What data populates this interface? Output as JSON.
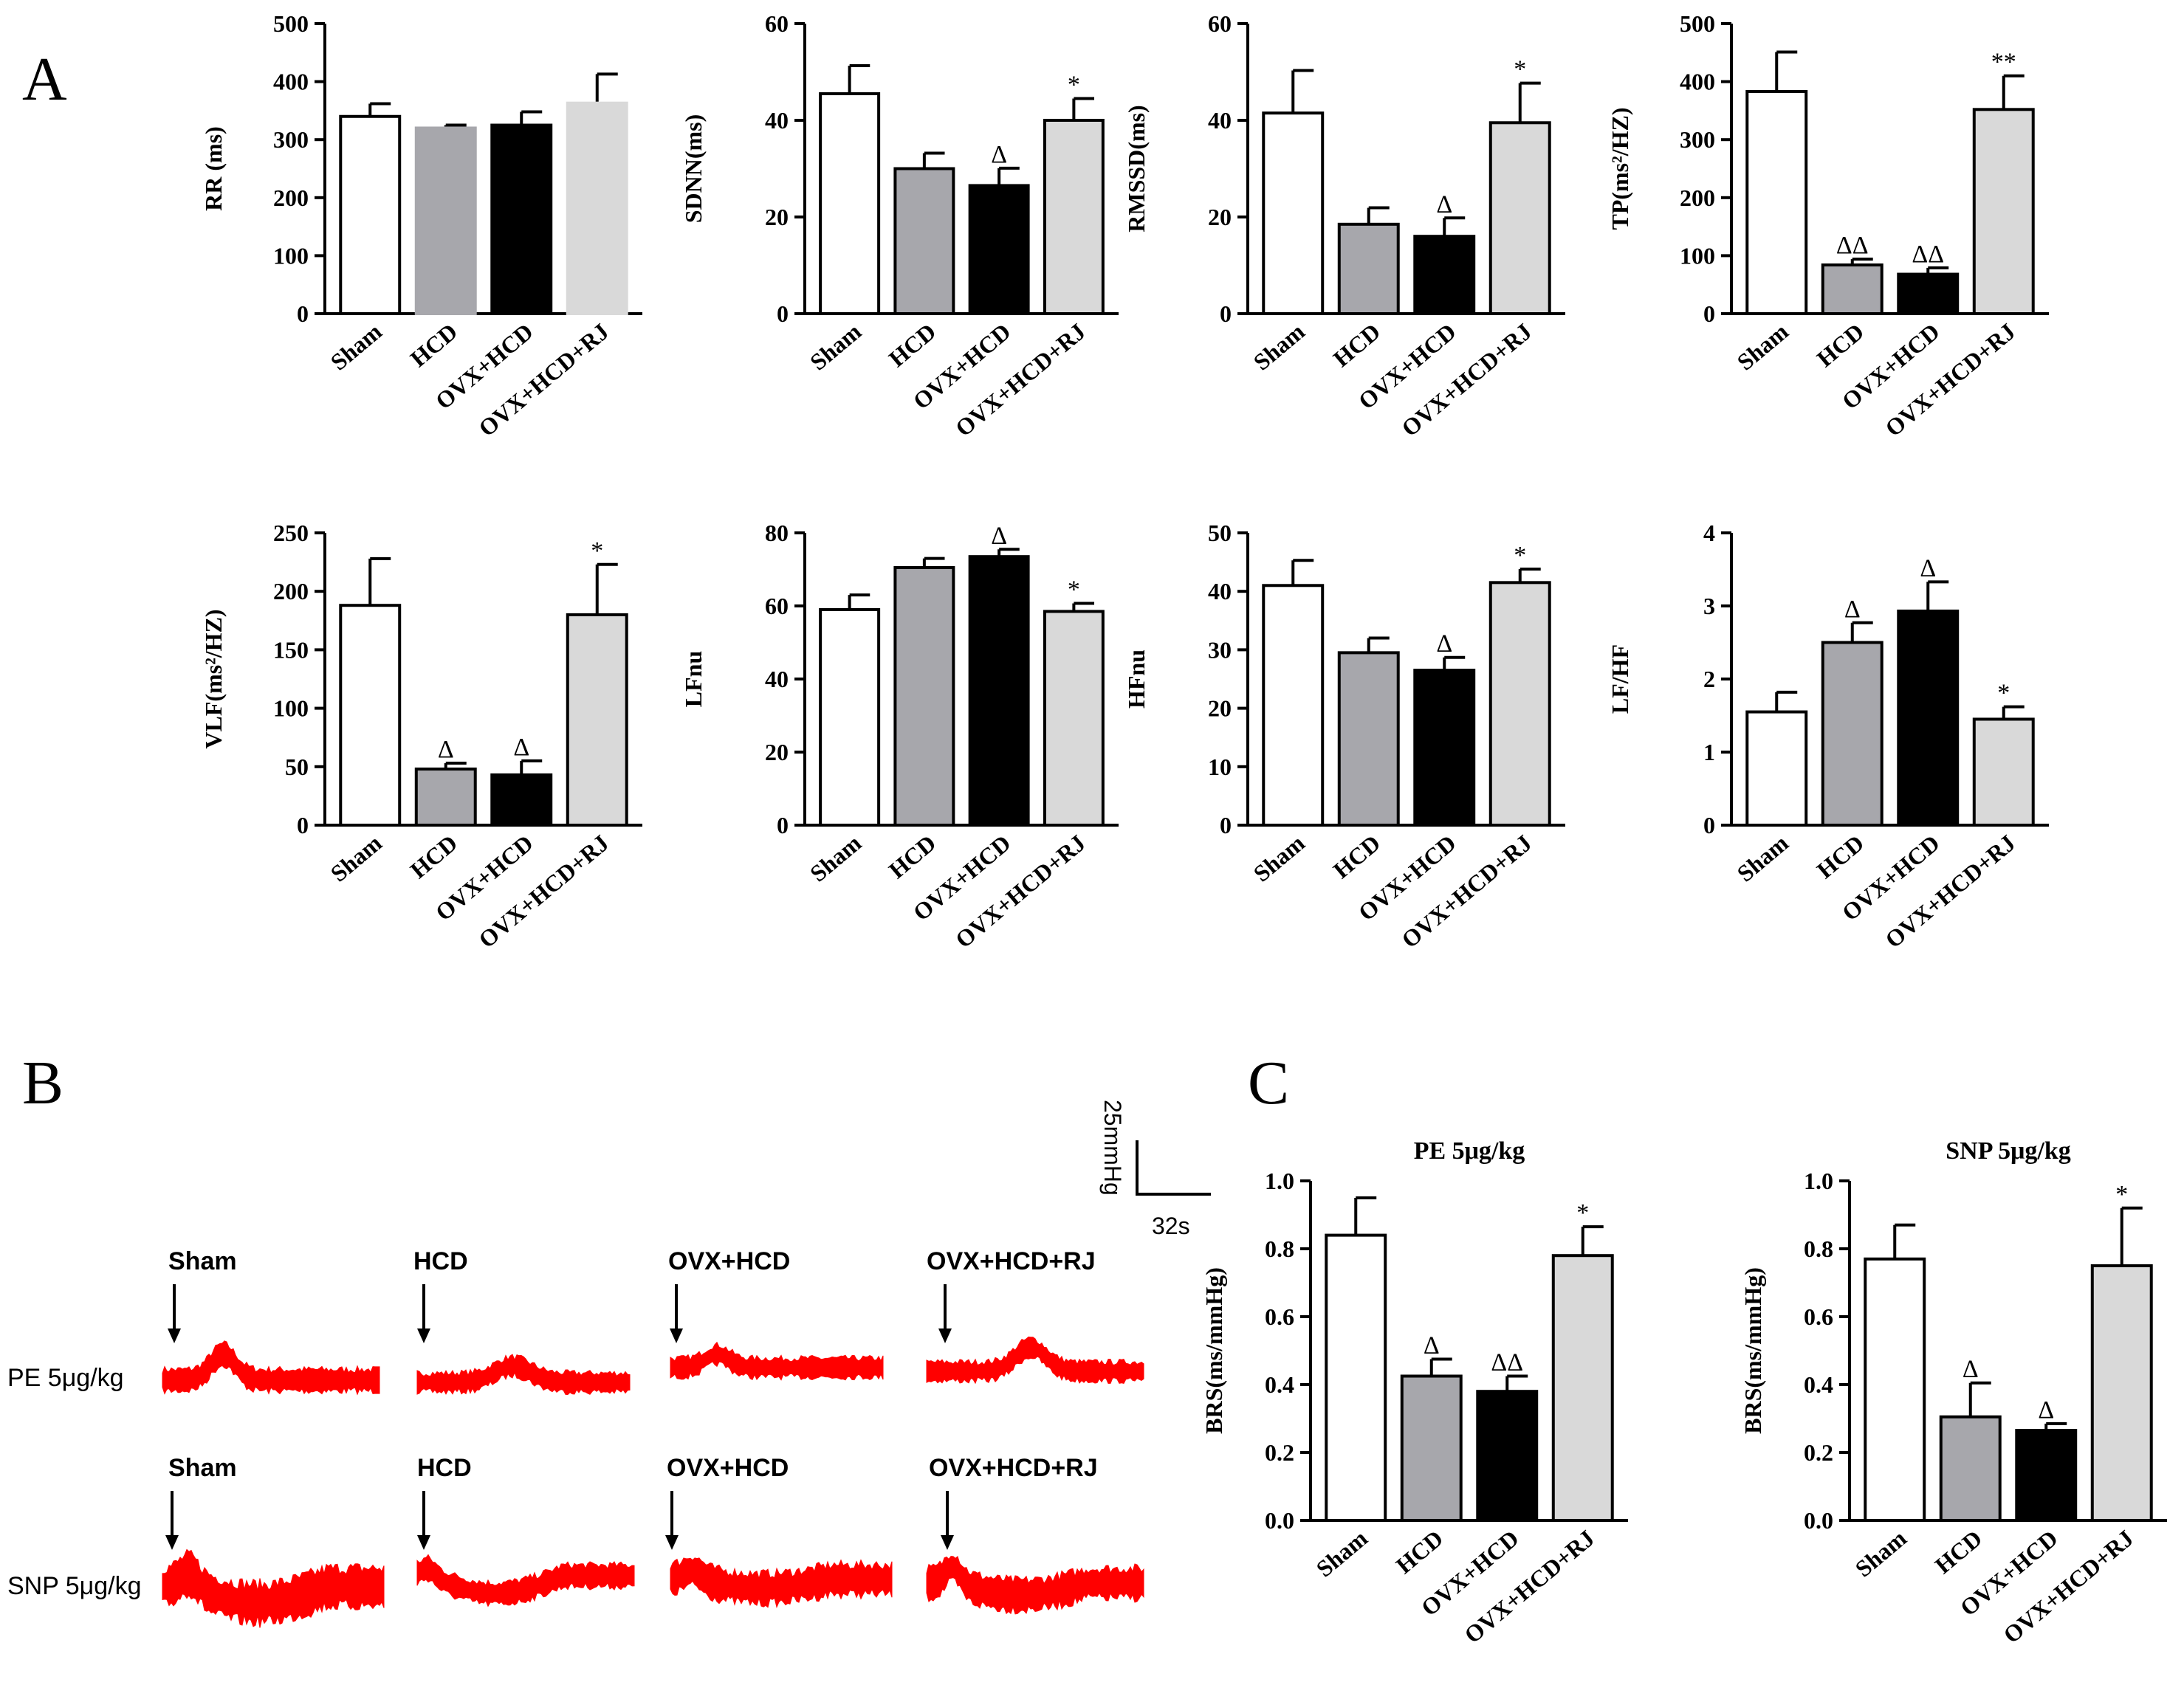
{
  "panel_labels": {
    "A": "A",
    "B": "B",
    "C": "C"
  },
  "groups": [
    "Sham",
    "HCD",
    "OVX+HCD",
    "OVX+HCD+RJ"
  ],
  "group_colors": [
    "#ffffff",
    "#a7a7ac",
    "#000000",
    "#d9d9d9"
  ],
  "trace_color": "#ff0000",
  "scale_bar": {
    "vertical_label": "25mmHg",
    "horizontal_label": "32s"
  },
  "traces": {
    "pe_label": "PE 5μg/kg",
    "snp_label": "SNP 5μg/kg"
  },
  "chart_data": [
    {
      "id": "rr",
      "type": "bar",
      "ylabel": "RR (ms)",
      "ylim": [
        0,
        500
      ],
      "ticks": [
        "0",
        "100",
        "200",
        "300",
        "400",
        "500"
      ],
      "tickvals": [
        0,
        100,
        200,
        300,
        400,
        500
      ],
      "categories": [
        "Sham",
        "HCD",
        "OVX+HCD",
        "OVX+HCD+RJ"
      ],
      "values": [
        340,
        320,
        325,
        363
      ],
      "errors": [
        22,
        5,
        23,
        50
      ],
      "annotations": [
        "",
        "",
        "",
        ""
      ],
      "colors": [
        "#ffffff",
        "#a7a7ac",
        "#000000",
        "#d9d9d9"
      ]
    },
    {
      "id": "sdnn",
      "type": "bar",
      "ylabel": "SDNN(ms)",
      "ylim": [
        0,
        60
      ],
      "ticks": [
        "0",
        "20",
        "40",
        "60"
      ],
      "tickvals": [
        0,
        20,
        40,
        60
      ],
      "categories": [
        "Sham",
        "HCD",
        "OVX+HCD",
        "OVX+HCD+RJ"
      ],
      "values": [
        45.5,
        30,
        26.5,
        40
      ],
      "errors": [
        5.8,
        3.2,
        3.6,
        4.5
      ],
      "annotations": [
        "",
        "",
        "Δ",
        "*"
      ]
    },
    {
      "id": "rmssd",
      "type": "bar",
      "ylabel": "RMSSD(ms)",
      "ylim": [
        0,
        60
      ],
      "ticks": [
        "0",
        "20",
        "40",
        "60"
      ],
      "tickvals": [
        0,
        20,
        40,
        60
      ],
      "categories": [
        "Sham",
        "HCD",
        "OVX+HCD",
        "OVX+HCD+RJ"
      ],
      "values": [
        41.5,
        18.5,
        16,
        39.5
      ],
      "errors": [
        8.8,
        3.4,
        3.8,
        8.2
      ],
      "annotations": [
        "",
        "",
        "Δ",
        "*"
      ]
    },
    {
      "id": "tp",
      "type": "bar",
      "ylabel": "TP(ms²/HZ)",
      "ylim": [
        0,
        500
      ],
      "ticks": [
        "0",
        "100",
        "200",
        "300",
        "400",
        "500"
      ],
      "tickvals": [
        0,
        100,
        200,
        300,
        400,
        500
      ],
      "categories": [
        "Sham",
        "HCD",
        "OVX+HCD",
        "OVX+HCD+RJ"
      ],
      "values": [
        383,
        84,
        68,
        352
      ],
      "errors": [
        68,
        10,
        11,
        58
      ],
      "annotations": [
        "",
        "ΔΔ",
        "ΔΔ",
        "**"
      ]
    },
    {
      "id": "vlf",
      "type": "bar",
      "ylabel": "VLF(ms²/HZ)",
      "ylim": [
        0,
        250
      ],
      "ticks": [
        "0",
        "50",
        "100",
        "150",
        "200",
        "250"
      ],
      "tickvals": [
        0,
        50,
        100,
        150,
        200,
        250
      ],
      "categories": [
        "Sham",
        "HCD",
        "OVX+HCD",
        "OVX+HCD+RJ"
      ],
      "values": [
        188,
        48,
        43,
        180
      ],
      "errors": [
        40,
        5,
        12,
        43
      ],
      "annotations": [
        "",
        "Δ",
        "Δ",
        "*"
      ]
    },
    {
      "id": "lfnu",
      "type": "bar",
      "ylabel": "LFnu",
      "ylim": [
        0,
        80
      ],
      "ticks": [
        "0",
        "20",
        "40",
        "60",
        "80"
      ],
      "tickvals": [
        0,
        20,
        40,
        60,
        80
      ],
      "categories": [
        "Sham",
        "HCD",
        "OVX+HCD",
        "OVX+HCD+RJ"
      ],
      "values": [
        59,
        70.5,
        73.5,
        58.5
      ],
      "errors": [
        4,
        2.5,
        2,
        2.2
      ],
      "annotations": [
        "",
        "",
        "Δ",
        "*"
      ]
    },
    {
      "id": "hfnu",
      "type": "bar",
      "ylabel": "HFnu",
      "ylim": [
        0,
        50
      ],
      "ticks": [
        "0",
        "10",
        "20",
        "30",
        "40",
        "50"
      ],
      "tickvals": [
        0,
        10,
        20,
        30,
        40,
        50
      ],
      "categories": [
        "Sham",
        "HCD",
        "OVX+HCD",
        "OVX+HCD+RJ"
      ],
      "values": [
        41,
        29.5,
        26.5,
        41.5
      ],
      "errors": [
        4.3,
        2.5,
        2.2,
        2.3
      ],
      "annotations": [
        "",
        "",
        "Δ",
        "*"
      ]
    },
    {
      "id": "lfhf",
      "type": "bar",
      "ylabel": "LF/HF",
      "ylim": [
        0,
        4
      ],
      "ticks": [
        "0",
        "1",
        "2",
        "3",
        "4"
      ],
      "tickvals": [
        0,
        1,
        2,
        3,
        4
      ],
      "categories": [
        "Sham",
        "HCD",
        "OVX+HCD",
        "OVX+HCD+RJ"
      ],
      "values": [
        1.55,
        2.5,
        2.93,
        1.45
      ],
      "errors": [
        0.27,
        0.27,
        0.4,
        0.17
      ],
      "annotations": [
        "",
        "Δ",
        "Δ",
        "*"
      ]
    },
    {
      "id": "brs_pe",
      "type": "bar",
      "title": "PE 5μg/kg",
      "ylabel": "BRS(ms/mmHg)",
      "ylim": [
        0,
        1.0
      ],
      "ticks": [
        "0.0",
        "0.2",
        "0.4",
        "0.6",
        "0.8",
        "1.0"
      ],
      "tickvals": [
        0,
        0.2,
        0.4,
        0.6,
        0.8,
        1.0
      ],
      "categories": [
        "Sham",
        "HCD",
        "OVX+HCD",
        "OVX+HCD+RJ"
      ],
      "values": [
        0.84,
        0.425,
        0.38,
        0.78
      ],
      "errors": [
        0.11,
        0.05,
        0.045,
        0.085
      ],
      "annotations": [
        "",
        "Δ",
        "ΔΔ",
        "*"
      ]
    },
    {
      "id": "brs_snp",
      "type": "bar",
      "title": "SNP 5μg/kg",
      "ylabel": "BRS(ms/mmHg)",
      "ylim": [
        0,
        1.0
      ],
      "ticks": [
        "0.0",
        "0.2",
        "0.4",
        "0.6",
        "0.8",
        "1.0"
      ],
      "tickvals": [
        0,
        0.2,
        0.4,
        0.6,
        0.8,
        1.0
      ],
      "categories": [
        "Sham",
        "HCD",
        "OVX+HCD",
        "OVX+HCD+RJ"
      ],
      "values": [
        0.77,
        0.305,
        0.265,
        0.75
      ],
      "errors": [
        0.1,
        0.1,
        0.02,
        0.17
      ],
      "annotations": [
        "",
        "Δ",
        "Δ",
        "*"
      ]
    }
  ]
}
